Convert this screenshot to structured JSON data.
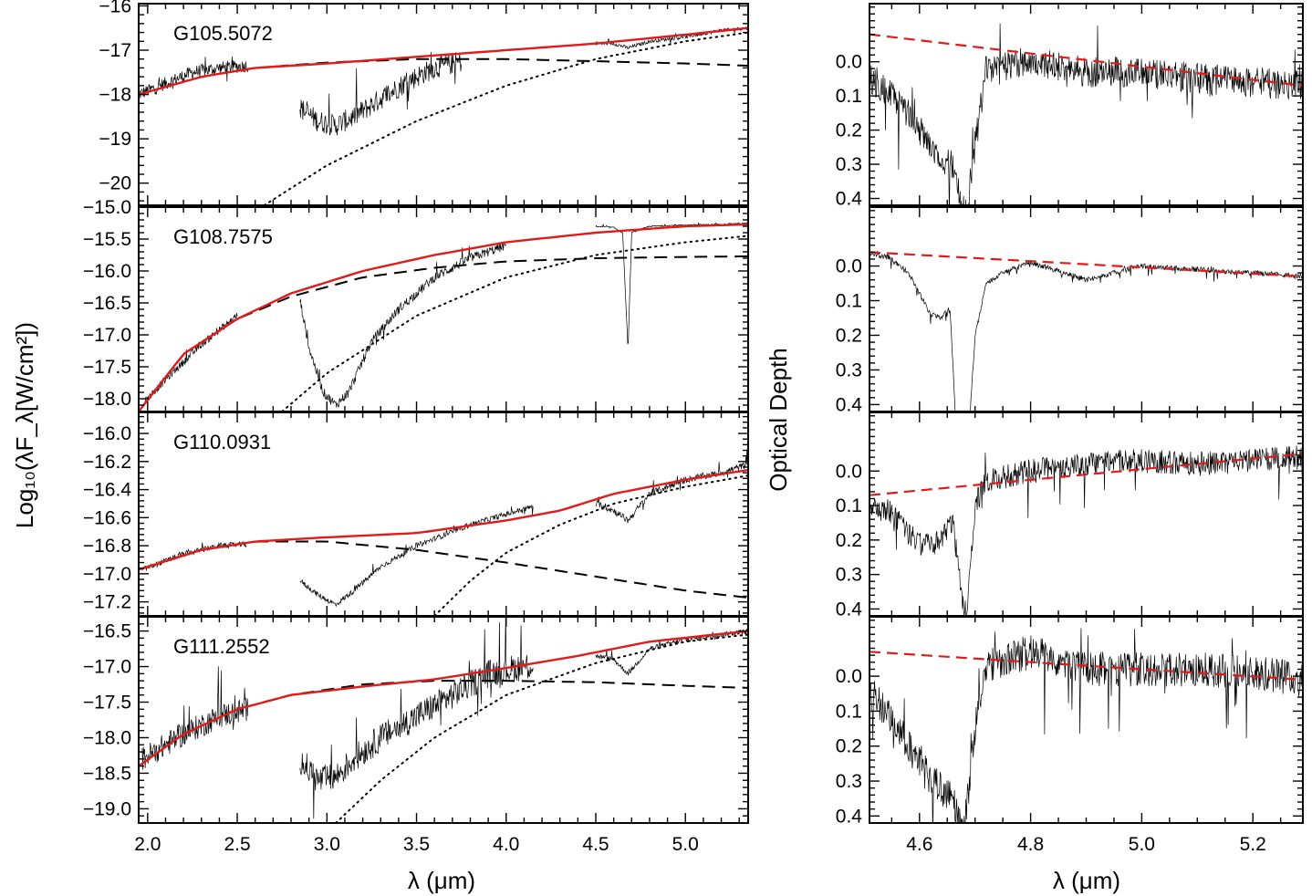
{
  "figure": {
    "left_ylabel": "Log₁₀(λF_λ[W/cm²])",
    "right_ylabel": "Optical Depth",
    "left_xlabel": "λ (μm)",
    "right_xlabel": "λ (μm)"
  },
  "colors": {
    "fit": "#e01b1b",
    "data": "#000000",
    "axis": "#000000"
  },
  "chart_data": [
    {
      "type": "line",
      "panel": "left",
      "name": "G105.5072",
      "xlim": [
        1.95,
        5.35
      ],
      "ylim": [
        -20.5,
        -15.95
      ],
      "xticks": [
        2.0,
        2.5,
        3.0,
        3.5,
        4.0,
        4.5,
        5.0
      ],
      "xtick_labels": [
        "2.0",
        "2.5",
        "3.0",
        "3.5",
        "4.0",
        "4.5",
        "5.0"
      ],
      "show_xtick_labels": false,
      "yticks": [
        -20,
        -19,
        -18,
        -17,
        -16
      ],
      "ytick_labels": [
        "−20",
        "−19",
        "−18",
        "−17",
        "−16"
      ],
      "red_fit": {
        "x": [
          1.95,
          2.3,
          2.6,
          3.0,
          3.5,
          4.0,
          4.5,
          5.0,
          5.35
        ],
        "y": [
          -18.0,
          -17.6,
          -17.4,
          -17.3,
          -17.15,
          -17.0,
          -16.85,
          -16.65,
          -16.5
        ]
      },
      "dashed": {
        "x": [
          1.95,
          2.3,
          2.6,
          3.0,
          3.5,
          4.0,
          4.5,
          5.0,
          5.35
        ],
        "y": [
          -18.0,
          -17.6,
          -17.4,
          -17.28,
          -17.2,
          -17.2,
          -17.25,
          -17.3,
          -17.35
        ]
      },
      "dotted": {
        "x": [
          2.65,
          3.0,
          3.5,
          4.0,
          4.5,
          5.0,
          5.35
        ],
        "y": [
          -20.5,
          -19.6,
          -18.6,
          -17.8,
          -17.2,
          -16.8,
          -16.6
        ]
      },
      "spectrum": {
        "segments": [
          {
            "x": [
              1.95,
              2.1,
              2.25,
              2.4,
              2.56
            ],
            "y": [
              -18.0,
              -17.75,
              -17.5,
              -17.4,
              -17.35
            ],
            "noise": 0.3
          },
          {
            "x": [
              2.85,
              2.95,
              3.05,
              3.15,
              3.3,
              3.45,
              3.6,
              3.75
            ],
            "y": [
              -18.3,
              -18.6,
              -18.7,
              -18.5,
              -18.1,
              -17.7,
              -17.4,
              -17.25
            ],
            "noise": 0.5
          },
          {
            "x": [
              4.5,
              4.6,
              4.68,
              4.8,
              5.0,
              5.2,
              5.35
            ],
            "y": [
              -16.85,
              -16.85,
              -16.95,
              -16.8,
              -16.7,
              -16.55,
              -16.5
            ],
            "noise": 0.08
          }
        ]
      }
    },
    {
      "type": "line",
      "panel": "left",
      "name": "G108.7575",
      "xlim": [
        1.95,
        5.35
      ],
      "ylim": [
        -18.2,
        -15.0
      ],
      "xticks": [
        2.0,
        2.5,
        3.0,
        3.5,
        4.0,
        4.5,
        5.0
      ],
      "xtick_labels": [
        "2.0",
        "2.5",
        "3.0",
        "3.5",
        "4.0",
        "4.5",
        "5.0"
      ],
      "show_xtick_labels": false,
      "yticks": [
        -18.0,
        -17.5,
        -17.0,
        -16.5,
        -16.0,
        -15.5,
        -15.0
      ],
      "ytick_labels": [
        "−18.0",
        "−17.5",
        "−17.0",
        "−16.5",
        "−16.0",
        "−15.5",
        "−15.0"
      ],
      "red_fit": {
        "x": [
          1.95,
          2.2,
          2.5,
          2.8,
          3.2,
          3.6,
          4.0,
          4.5,
          5.0,
          5.35
        ],
        "y": [
          -18.2,
          -17.3,
          -16.75,
          -16.35,
          -16.0,
          -15.75,
          -15.55,
          -15.4,
          -15.3,
          -15.27
        ]
      },
      "dashed": {
        "x": [
          1.95,
          2.2,
          2.5,
          2.8,
          3.2,
          3.6,
          4.0,
          4.5,
          5.0,
          5.35
        ],
        "y": [
          -18.2,
          -17.3,
          -16.75,
          -16.4,
          -16.1,
          -15.95,
          -15.85,
          -15.8,
          -15.78,
          -15.77
        ]
      },
      "dotted": {
        "x": [
          2.75,
          3.0,
          3.5,
          4.0,
          4.5,
          5.0,
          5.35
        ],
        "y": [
          -18.2,
          -17.6,
          -16.7,
          -16.1,
          -15.75,
          -15.55,
          -15.45
        ]
      },
      "spectrum": {
        "segments": [
          {
            "x": [
              1.98,
              2.1,
              2.3,
              2.5
            ],
            "y": [
              -18.05,
              -17.7,
              -17.15,
              -16.7
            ],
            "noise": 0.12
          },
          {
            "x": [
              2.85,
              2.9,
              2.98,
              3.05,
              3.12,
              3.25,
              3.4,
              3.6,
              3.8,
              4.0
            ],
            "y": [
              -16.45,
              -17.2,
              -17.9,
              -18.1,
              -17.9,
              -17.1,
              -16.6,
              -16.1,
              -15.8,
              -15.6
            ],
            "noise": 0.15
          },
          {
            "x": [
              4.5,
              4.6,
              4.65,
              4.68,
              4.7,
              4.8,
              5.0,
              5.2,
              5.35
            ],
            "y": [
              -15.3,
              -15.32,
              -15.4,
              -17.25,
              -15.4,
              -15.3,
              -15.28,
              -15.27,
              -15.25
            ],
            "noise": 0.02
          }
        ]
      }
    },
    {
      "type": "line",
      "panel": "left",
      "name": "G110.0931",
      "xlim": [
        1.95,
        5.35
      ],
      "ylim": [
        -17.3,
        -15.85
      ],
      "xticks": [
        2.0,
        2.5,
        3.0,
        3.5,
        4.0,
        4.5,
        5.0
      ],
      "xtick_labels": [
        "2.0",
        "2.5",
        "3.0",
        "3.5",
        "4.0",
        "4.5",
        "5.0"
      ],
      "show_xtick_labels": false,
      "yticks": [
        -17.2,
        -17.0,
        -16.8,
        -16.6,
        -16.4,
        -16.2,
        -16.0
      ],
      "ytick_labels": [
        "−17.2",
        "−17.0",
        "−16.8",
        "−16.6",
        "−16.4",
        "−16.2",
        "−16.0"
      ],
      "red_fit": {
        "x": [
          1.95,
          2.3,
          2.6,
          3.0,
          3.5,
          4.0,
          4.3,
          4.6,
          5.0,
          5.35
        ],
        "y": [
          -16.97,
          -16.83,
          -16.77,
          -16.74,
          -16.71,
          -16.62,
          -16.55,
          -16.43,
          -16.33,
          -16.26
        ]
      },
      "dashed": {
        "x": [
          1.95,
          2.3,
          2.6,
          3.0,
          3.5,
          4.0,
          4.5,
          5.0,
          5.35
        ],
        "y": [
          -16.97,
          -16.83,
          -16.77,
          -16.77,
          -16.83,
          -16.92,
          -17.02,
          -17.12,
          -17.17
        ]
      },
      "dotted": {
        "x": [
          3.6,
          3.8,
          4.0,
          4.3,
          4.6,
          5.0,
          5.35
        ],
        "y": [
          -17.3,
          -17.05,
          -16.85,
          -16.65,
          -16.5,
          -16.38,
          -16.3
        ]
      },
      "spectrum": {
        "segments": [
          {
            "x": [
              1.97,
              2.2,
              2.4,
              2.55
            ],
            "y": [
              -16.97,
              -16.86,
              -16.8,
              -16.79
            ],
            "noise": 0.04
          },
          {
            "x": [
              2.85,
              2.95,
              3.05,
              3.15,
              3.3,
              3.5,
              3.8,
              4.15
            ],
            "y": [
              -17.05,
              -17.15,
              -17.22,
              -17.12,
              -16.95,
              -16.8,
              -16.65,
              -16.52
            ],
            "noise": 0.04
          },
          {
            "x": [
              4.5,
              4.6,
              4.68,
              4.8,
              5.0,
              5.2,
              5.35
            ],
            "y": [
              -16.5,
              -16.55,
              -16.62,
              -16.43,
              -16.33,
              -16.28,
              -16.22
            ],
            "noise": 0.05
          }
        ]
      }
    },
    {
      "type": "line",
      "panel": "left",
      "name": "G111.2552",
      "xlim": [
        1.95,
        5.35
      ],
      "ylim": [
        -19.2,
        -16.3
      ],
      "xticks": [
        2.0,
        2.5,
        3.0,
        3.5,
        4.0,
        4.5,
        5.0
      ],
      "xtick_labels": [
        "2.0",
        "2.5",
        "3.0",
        "3.5",
        "4.0",
        "4.5",
        "5.0"
      ],
      "show_xtick_labels": true,
      "yticks": [
        -19.0,
        -18.5,
        -18.0,
        -17.5,
        -17.0,
        -16.5
      ],
      "ytick_labels": [
        "−19.0",
        "−18.5",
        "−18.0",
        "−17.5",
        "−17.0",
        "−16.5"
      ],
      "red_fit": {
        "x": [
          1.95,
          2.2,
          2.5,
          2.8,
          3.2,
          3.6,
          4.0,
          4.4,
          4.8,
          5.35
        ],
        "y": [
          -18.4,
          -17.95,
          -17.6,
          -17.4,
          -17.28,
          -17.18,
          -17.02,
          -16.85,
          -16.65,
          -16.5
        ]
      },
      "dashed": {
        "x": [
          1.95,
          2.2,
          2.5,
          2.8,
          3.2,
          3.6,
          4.0,
          4.5,
          5.0,
          5.35
        ],
        "y": [
          -18.4,
          -17.95,
          -17.6,
          -17.4,
          -17.25,
          -17.2,
          -17.2,
          -17.22,
          -17.27,
          -17.3
        ]
      },
      "dotted": {
        "x": [
          3.05,
          3.3,
          3.6,
          4.0,
          4.5,
          5.0,
          5.35
        ],
        "y": [
          -19.2,
          -18.6,
          -18.0,
          -17.4,
          -16.95,
          -16.65,
          -16.55
        ]
      },
      "spectrum": {
        "segments": [
          {
            "x": [
              1.97,
              2.2,
              2.4,
              2.56
            ],
            "y": [
              -18.3,
              -17.95,
              -17.7,
              -17.6
            ],
            "noise": 0.35
          },
          {
            "x": [
              2.85,
              2.95,
              3.05,
              3.15,
              3.3,
              3.5,
              3.7,
              3.9,
              4.15
            ],
            "y": [
              -18.3,
              -18.6,
              -18.55,
              -18.3,
              -18.0,
              -17.7,
              -17.4,
              -17.1,
              -16.97
            ],
            "noise": 0.4
          },
          {
            "x": [
              4.5,
              4.6,
              4.68,
              4.8,
              5.0,
              5.2,
              5.35
            ],
            "y": [
              -16.85,
              -16.9,
              -17.1,
              -16.75,
              -16.62,
              -16.55,
              -16.5
            ],
            "noise": 0.07
          }
        ]
      }
    },
    {
      "type": "line",
      "panel": "right",
      "name": "G105.5072 optical depth",
      "xlim": [
        4.51,
        5.29
      ],
      "ylim": [
        0.42,
        -0.17
      ],
      "xticks": [
        4.6,
        4.8,
        5.0,
        5.2
      ],
      "xtick_labels": [
        "4.6",
        "4.8",
        "5.0",
        "5.2"
      ],
      "show_xtick_labels": false,
      "yticks": [
        0.0,
        0.1,
        0.2,
        0.3,
        0.4
      ],
      "ytick_labels": [
        "0.0",
        "0.1",
        "0.2",
        "0.3",
        "0.4"
      ],
      "red_fit": {
        "x": [
          4.51,
          5.29
        ],
        "y": [
          -0.08,
          0.07
        ]
      },
      "spectrum": {
        "noise": 0.09,
        "x": [
          4.51,
          4.55,
          4.58,
          4.6,
          4.62,
          4.64,
          4.66,
          4.675,
          4.685,
          4.695,
          4.72,
          4.8,
          4.9,
          5.0,
          5.1,
          5.2,
          5.29
        ],
        "y": [
          0.05,
          0.1,
          0.15,
          0.2,
          0.25,
          0.28,
          0.3,
          0.42,
          0.45,
          0.3,
          0.02,
          0.0,
          0.03,
          0.03,
          0.05,
          0.06,
          0.07
        ]
      }
    },
    {
      "type": "line",
      "panel": "right",
      "name": "G108.7575 optical depth",
      "xlim": [
        4.51,
        5.29
      ],
      "ylim": [
        0.42,
        -0.17
      ],
      "xticks": [
        4.6,
        4.8,
        5.0,
        5.2
      ],
      "xtick_labels": [
        "4.6",
        "4.8",
        "5.0",
        "5.2"
      ],
      "show_xtick_labels": false,
      "yticks": [
        0.0,
        0.1,
        0.2,
        0.3,
        0.4
      ],
      "ytick_labels": [
        "0.0",
        "0.1",
        "0.2",
        "0.3",
        "0.4"
      ],
      "red_fit": {
        "x": [
          4.51,
          5.29
        ],
        "y": [
          -0.04,
          0.03
        ]
      },
      "spectrum": {
        "noise": 0.015,
        "x": [
          4.51,
          4.55,
          4.58,
          4.6,
          4.62,
          4.64,
          4.655,
          4.665,
          4.675,
          4.69,
          4.7,
          4.72,
          4.75,
          4.8,
          4.9,
          5.0,
          5.1,
          5.2,
          5.29
        ],
        "y": [
          -0.04,
          -0.02,
          0.02,
          0.08,
          0.14,
          0.15,
          0.12,
          0.45,
          0.45,
          0.45,
          0.2,
          0.05,
          0.02,
          -0.01,
          0.04,
          0.0,
          0.01,
          0.02,
          0.03
        ]
      }
    },
    {
      "type": "line",
      "panel": "right",
      "name": "G110.0931 optical depth",
      "xlim": [
        4.51,
        5.29
      ],
      "ylim": [
        0.42,
        -0.17
      ],
      "xticks": [
        4.6,
        4.8,
        5.0,
        5.2
      ],
      "xtick_labels": [
        "4.6",
        "4.8",
        "5.0",
        "5.2"
      ],
      "show_xtick_labels": false,
      "yticks": [
        0.0,
        0.1,
        0.2,
        0.3,
        0.4
      ],
      "ytick_labels": [
        "0.0",
        "0.1",
        "0.2",
        "0.3",
        "0.4"
      ],
      "red_fit": {
        "x": [
          4.51,
          5.29
        ],
        "y": [
          0.07,
          -0.05
        ]
      },
      "spectrum": {
        "noise": 0.07,
        "x": [
          4.51,
          4.55,
          4.58,
          4.6,
          4.62,
          4.64,
          4.66,
          4.675,
          4.685,
          4.7,
          4.72,
          4.8,
          4.9,
          5.0,
          5.1,
          5.2,
          5.29
        ],
        "y": [
          0.1,
          0.12,
          0.18,
          0.21,
          0.22,
          0.2,
          0.15,
          0.35,
          0.42,
          0.1,
          0.03,
          0.0,
          -0.02,
          -0.03,
          -0.02,
          -0.03,
          -0.04
        ]
      }
    },
    {
      "type": "line",
      "panel": "right",
      "name": "G111.2552 optical depth",
      "xlim": [
        4.51,
        5.29
      ],
      "ylim": [
        0.42,
        -0.17
      ],
      "xticks": [
        4.6,
        4.8,
        5.0,
        5.2
      ],
      "xtick_labels": [
        "4.6",
        "4.8",
        "5.0",
        "5.2"
      ],
      "show_xtick_labels": true,
      "yticks": [
        0.0,
        0.1,
        0.2,
        0.3,
        0.4
      ],
      "ytick_labels": [
        "0.0",
        "0.1",
        "0.2",
        "0.3",
        "0.4"
      ],
      "red_fit": {
        "x": [
          4.51,
          5.29
        ],
        "y": [
          -0.07,
          0.01
        ]
      },
      "spectrum": {
        "noise": 0.1,
        "x": [
          4.51,
          4.55,
          4.58,
          4.6,
          4.62,
          4.64,
          4.66,
          4.68,
          4.7,
          4.72,
          4.8,
          4.9,
          5.0,
          5.1,
          5.2,
          5.29
        ],
        "y": [
          0.05,
          0.12,
          0.2,
          0.25,
          0.3,
          0.32,
          0.35,
          0.45,
          0.15,
          -0.03,
          -0.07,
          -0.02,
          -0.02,
          -0.02,
          -0.01,
          0.01
        ]
      }
    }
  ]
}
